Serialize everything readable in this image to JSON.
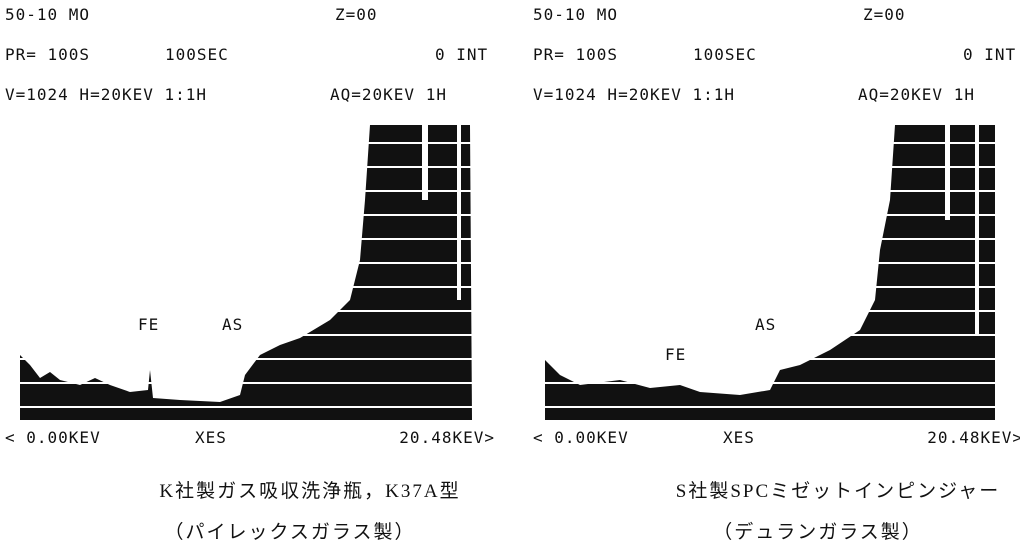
{
  "panels": [
    {
      "header": [
        "50-10 MO",
        "Z=00",
        "PR=  100S",
        "100SEC",
        "0 INT",
        "V=1024 H=20KEV 1:1H",
        "AQ=20KEV 1H"
      ],
      "peaks": [
        "FE",
        "AS"
      ],
      "axis": [
        "< 0.00KEV",
        "XES",
        "20.48KEV>"
      ],
      "caption": [
        "K社製ガス吸収洗浄瓶，K37A型",
        "（パイレックスガラス製）"
      ]
    },
    {
      "header": [
        "50-10 MO",
        "Z=00",
        "PR= 100S",
        "100SEC",
        "0 INT",
        "V=1024 H=20KEV 1:1H",
        "AQ=20KEV 1H"
      ],
      "peaks": [
        "AS",
        "FE"
      ],
      "axis": [
        "< 0.00KEV",
        "XES",
        "20.48KEV>"
      ],
      "caption": [
        "S社製SPCミゼットインピンジャー",
        "（デュランガラス製）"
      ]
    }
  ]
}
